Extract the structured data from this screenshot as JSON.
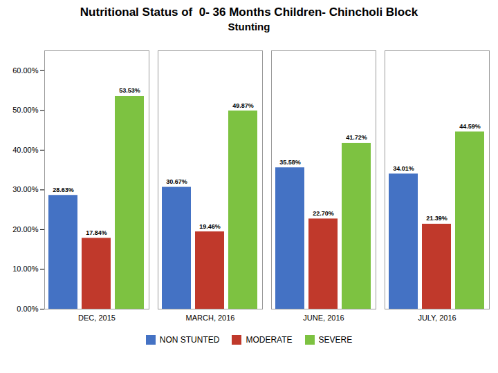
{
  "chart_data": {
    "type": "bar",
    "title": "Nutritional Status of  0- 36 Months Children- Chincholi Block",
    "subtitle": "Stunting",
    "categories": [
      "DEC, 2015",
      "MARCH, 2016",
      "JUNE, 2016",
      "JULY, 2016"
    ],
    "series": [
      {
        "name": "NON STUNTED",
        "color": "#4472C4",
        "values": [
          28.63,
          30.67,
          35.58,
          34.01
        ],
        "value_labels": [
          "28.63%",
          "30.67%",
          "35.58%",
          "34.01%"
        ]
      },
      {
        "name": "MODERATE",
        "color": "#C0392B",
        "values": [
          17.84,
          19.46,
          22.7,
          21.39
        ],
        "value_labels": [
          "17.84%",
          "19.46%",
          "22.70%",
          "21.39%"
        ]
      },
      {
        "name": "SEVERE",
        "color": "#7DC241",
        "values": [
          53.53,
          49.87,
          41.72,
          44.59
        ],
        "value_labels": [
          "53.53%",
          "49.87%",
          "41.72%",
          "44.59%"
        ]
      }
    ],
    "ylim": [
      0,
      65
    ],
    "yticks": [
      {
        "value": 0,
        "label": "0.00%"
      },
      {
        "value": 10,
        "label": "10.00%"
      },
      {
        "value": 20,
        "label": "20.00%"
      },
      {
        "value": 30,
        "label": "30.00%"
      },
      {
        "value": 40,
        "label": "40.00%"
      },
      {
        "value": 50,
        "label": "50.00%"
      },
      {
        "value": 60,
        "label": "60.00%"
      }
    ],
    "grid": false,
    "data_labels": true,
    "legend": "bottom"
  }
}
